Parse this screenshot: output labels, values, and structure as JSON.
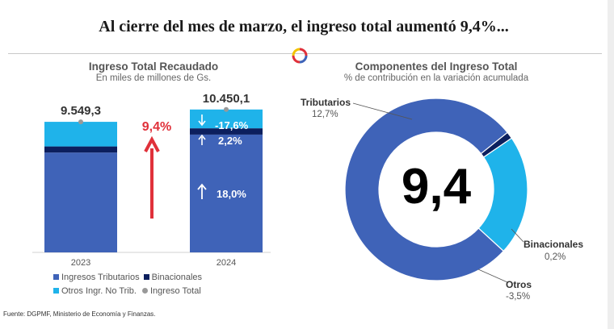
{
  "title": "Al cierre del mes de marzo, el ingreso total aumentó 9,4%...",
  "left_panel": {
    "title": "Ingreso Total Recaudado",
    "subtitle": "En miles de millones de Gs."
  },
  "right_panel": {
    "title": "Componentes del Ingreso Total",
    "subtitle": "% de contribución en la variación acumulada"
  },
  "source": "Fuente: DGPMF, Ministerio de Economía y Finanzas.",
  "colors": {
    "tributarios": "#3f63b8",
    "binacionales": "#0c1f5e",
    "otros": "#1fb3ea",
    "ingreso_total": "#999999",
    "arrow": "#e0313a"
  },
  "chart_data": [
    {
      "type": "bar",
      "stacked": true,
      "categories": [
        "2023",
        "2024"
      ],
      "series": [
        {
          "name": "Ingresos Tributarios",
          "values": [
            7300,
            8615
          ]
        },
        {
          "name": "Binacionales",
          "values": [
            450,
            460
          ]
        },
        {
          "name": "Otros Ingr. No Trib.",
          "values": [
            1799.3,
            1375.1
          ]
        }
      ],
      "totals": [
        {
          "name": "Ingreso Total",
          "values": [
            9549.3,
            10450.1
          ],
          "labels": [
            "9.549,3",
            "10.450,1"
          ]
        }
      ],
      "change_labels": {
        "total": "9,4%",
        "otros": "-17,6%",
        "binacionales": "2,2%",
        "tributarios": "18,0%"
      },
      "change_directions": {
        "otros": "down",
        "binacionales": "up",
        "tributarios": "up"
      },
      "ylim": [
        0,
        11500
      ]
    },
    {
      "type": "pie",
      "donut": true,
      "center_label": "9,4",
      "slices": [
        {
          "name": "Tributarios",
          "value": 12.7,
          "label": "12,7%"
        },
        {
          "name": "Binacionales",
          "value": 0.2,
          "label": "0,2%"
        },
        {
          "name": "Otros",
          "value": -3.5,
          "label": "-3,5%"
        }
      ]
    }
  ]
}
